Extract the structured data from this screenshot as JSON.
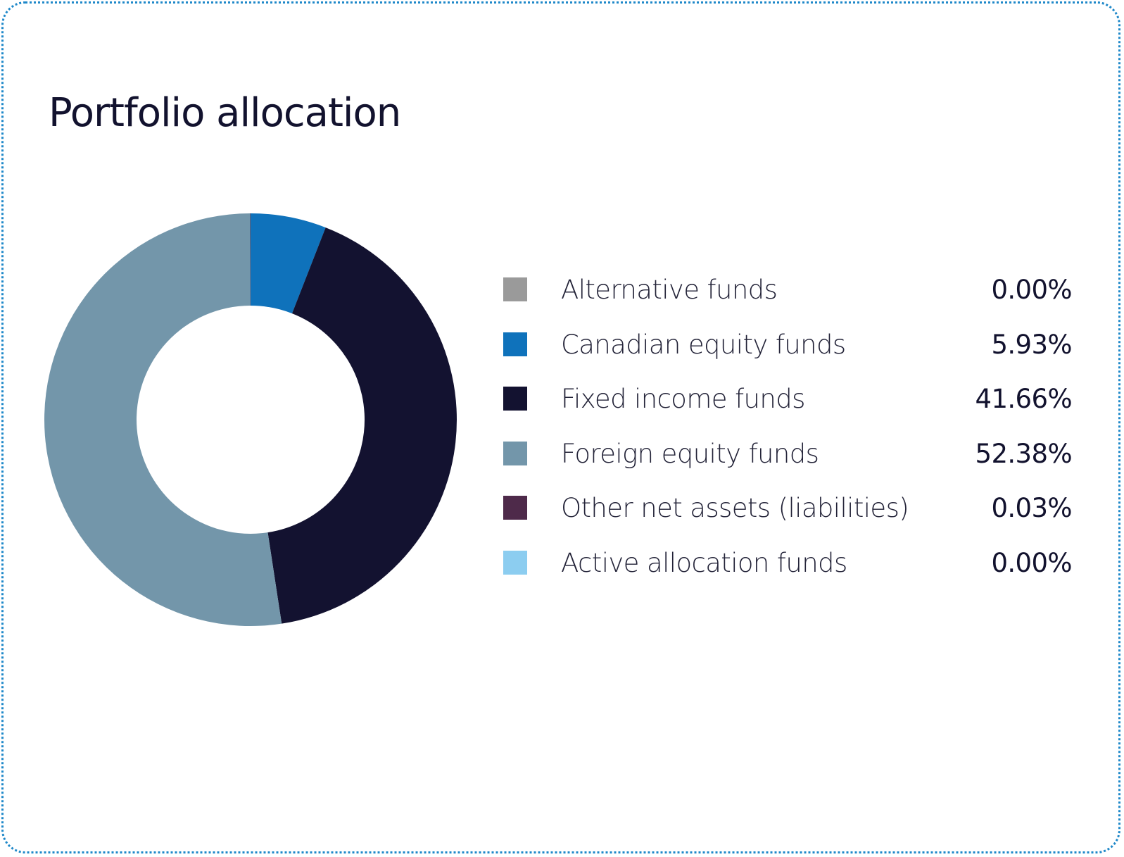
{
  "chart_data": {
    "type": "pie",
    "variant": "donut",
    "title": "Portfolio allocation",
    "legend_position": "right",
    "categories": [
      "Alternative funds",
      "Canadian equity funds",
      "Fixed income funds",
      "Foreign equity funds",
      "Other net assets (liabilities)",
      "Active allocation funds"
    ],
    "values": [
      0.0,
      5.93,
      41.66,
      52.38,
      0.03,
      0.0
    ],
    "value_labels": [
      "0.00%",
      "5.93%",
      "41.66%",
      "52.38%",
      "0.03%",
      "0.00%"
    ],
    "colors": [
      "#9a9a9a",
      "#0f72bb",
      "#131230",
      "#7396aa",
      "#4e2a4a",
      "#8ccdf0"
    ],
    "start_angle_deg": 0,
    "direction": "clockwise"
  }
}
